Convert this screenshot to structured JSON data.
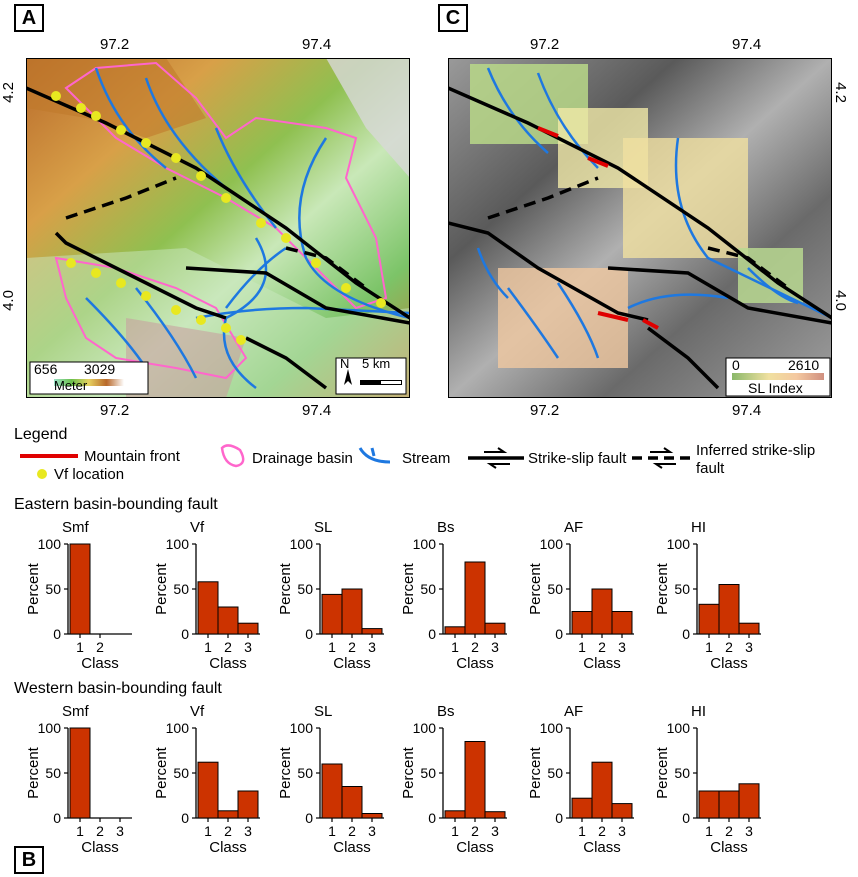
{
  "panel_labels": {
    "a": "A",
    "b": "B",
    "c": "C"
  },
  "map_a": {
    "top_ticks": [
      "97.2",
      "97.4"
    ],
    "bottom_ticks": [
      "97.2",
      "97.4"
    ],
    "left_ticks": [
      "4.2",
      "4.0"
    ],
    "elev_min": "656",
    "elev_max": "3029",
    "elev_unit": "Meter",
    "north": "N",
    "scale": "5 km"
  },
  "map_c": {
    "top_ticks": [
      "97.2",
      "97.4"
    ],
    "bottom_ticks": [
      "97.2",
      "97.4"
    ],
    "right_ticks": [
      "4.2",
      "4.0"
    ],
    "sl_min": "0",
    "sl_max": "2610",
    "sl_title": "SL Index"
  },
  "legend": {
    "title": "Legend",
    "mountain_front": "Mountain front",
    "vf_location": "Vf location",
    "drainage_basin": "Drainage basin",
    "stream": "Stream",
    "strike_slip": "Strike-slip fault",
    "inferred_line1": "Inferred strike-slip",
    "inferred_line2": "fault"
  },
  "colors": {
    "bar": "#cc3300",
    "stream": "#1e78e0",
    "basin": "#ff66cc",
    "vf": "#e8e820",
    "front": "#e00000"
  },
  "chart_axes": {
    "ylabel": "Percent",
    "xlabel": "Class",
    "yticks": [
      "0",
      "50",
      "100"
    ]
  },
  "chart_data": [
    {
      "group": "Eastern basin-bounding fault",
      "type": "bar",
      "charts": [
        {
          "title": "Smf",
          "categories": [
            "1",
            "2"
          ],
          "values": [
            100,
            0
          ],
          "ylim": [
            0,
            100
          ]
        },
        {
          "title": "Vf",
          "categories": [
            "1",
            "2",
            "3"
          ],
          "values": [
            58,
            30,
            12
          ],
          "ylim": [
            0,
            100
          ]
        },
        {
          "title": "SL",
          "categories": [
            "1",
            "2",
            "3"
          ],
          "values": [
            44,
            50,
            6
          ],
          "ylim": [
            0,
            100
          ]
        },
        {
          "title": "Bs",
          "categories": [
            "1",
            "2",
            "3"
          ],
          "values": [
            8,
            80,
            12
          ],
          "ylim": [
            0,
            100
          ]
        },
        {
          "title": "AF",
          "categories": [
            "1",
            "2",
            "3"
          ],
          "values": [
            25,
            50,
            25
          ],
          "ylim": [
            0,
            100
          ]
        },
        {
          "title": "HI",
          "categories": [
            "1",
            "2",
            "3"
          ],
          "values": [
            33,
            55,
            12
          ],
          "ylim": [
            0,
            100
          ]
        }
      ]
    },
    {
      "group": "Western basin-bounding fault",
      "type": "bar",
      "charts": [
        {
          "title": "Smf",
          "categories": [
            "1",
            "2",
            "3"
          ],
          "values": [
            100,
            0,
            0
          ],
          "ylim": [
            0,
            100
          ]
        },
        {
          "title": "Vf",
          "categories": [
            "1",
            "2",
            "3"
          ],
          "values": [
            62,
            8,
            30
          ],
          "ylim": [
            0,
            100
          ]
        },
        {
          "title": "SL",
          "categories": [
            "1",
            "2",
            "3"
          ],
          "values": [
            60,
            35,
            5
          ],
          "ylim": [
            0,
            100
          ]
        },
        {
          "title": "Bs",
          "categories": [
            "1",
            "2",
            "3"
          ],
          "values": [
            8,
            85,
            7
          ],
          "ylim": [
            0,
            100
          ]
        },
        {
          "title": "AF",
          "categories": [
            "1",
            "2",
            "3"
          ],
          "values": [
            22,
            62,
            16
          ],
          "ylim": [
            0,
            100
          ]
        },
        {
          "title": "HI",
          "categories": [
            "1",
            "2",
            "3"
          ],
          "values": [
            30,
            30,
            38
          ],
          "ylim": [
            0,
            100
          ]
        }
      ]
    }
  ]
}
